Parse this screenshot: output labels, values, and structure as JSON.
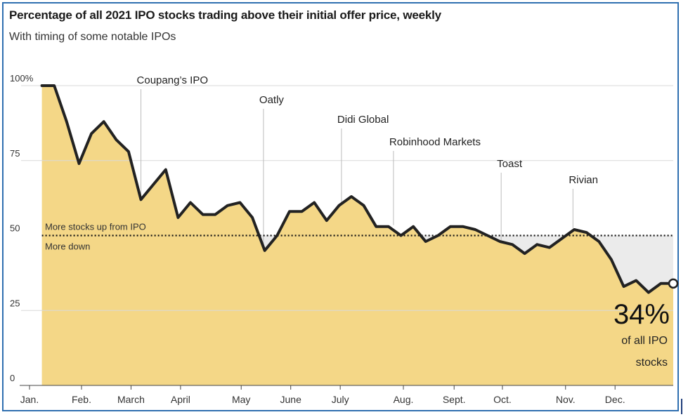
{
  "chart_data": {
    "type": "area",
    "title": "Percentage of all 2021 IPO stocks trading above their initial offer price, weekly",
    "subtitle": "With timing of some notable IPOs",
    "y_ticks": [
      {
        "value": 100,
        "label": "100%"
      },
      {
        "value": 75,
        "label": "75"
      },
      {
        "value": 50,
        "label": "50"
      },
      {
        "value": 25,
        "label": "25"
      },
      {
        "value": 0,
        "label": "0"
      }
    ],
    "ylim": [
      0,
      100
    ],
    "xlim": [
      0,
      52
    ],
    "x_ticks": [
      {
        "week": 0,
        "label": "Jan."
      },
      {
        "week": 4.2,
        "label": "Feb."
      },
      {
        "week": 8.2,
        "label": "March"
      },
      {
        "week": 12.2,
        "label": "April"
      },
      {
        "week": 17.1,
        "label": "May"
      },
      {
        "week": 21.1,
        "label": "June"
      },
      {
        "week": 25.1,
        "label": "July"
      },
      {
        "week": 30.2,
        "label": "Aug."
      },
      {
        "week": 34.3,
        "label": "Sept."
      },
      {
        "week": 38.2,
        "label": "Oct."
      },
      {
        "week": 43.3,
        "label": "Nov."
      },
      {
        "week": 47.3,
        "label": "Dec."
      }
    ],
    "reference_line": {
      "value": 50,
      "label_above": "More stocks up from IPO",
      "label_below": "More down"
    },
    "series": [
      {
        "x": [
          1,
          2,
          3,
          4,
          5,
          6,
          7,
          8,
          9,
          10,
          11,
          12,
          13,
          14,
          15,
          16,
          17,
          18,
          19,
          20,
          21,
          22,
          23,
          24,
          25,
          26,
          27,
          28,
          29,
          30,
          31,
          32,
          33,
          34,
          35,
          36,
          37,
          38,
          39,
          40,
          41,
          42,
          43,
          44,
          45,
          46,
          47,
          48,
          49,
          50,
          51,
          52
        ],
        "values": [
          100,
          100,
          88,
          74,
          84,
          88,
          82,
          78,
          62,
          67,
          72,
          56,
          61,
          57,
          57,
          60,
          61,
          56,
          45,
          50,
          58,
          58,
          61,
          55,
          60,
          63,
          60,
          53,
          53,
          50,
          53,
          48,
          50,
          53,
          53,
          52,
          50,
          48,
          47,
          44,
          47,
          46,
          49,
          52,
          51,
          48,
          42,
          33,
          35,
          31,
          34,
          34
        ]
      }
    ],
    "annotations": [
      {
        "label": "Coupang’s IPO",
        "week": 9.0
      },
      {
        "label": "Oatly",
        "week": 18.9
      },
      {
        "label": "Didi Global",
        "week": 25.2
      },
      {
        "label": "Robinhood Markets",
        "week": 29.4
      },
      {
        "label": "Toast",
        "week": 38.1
      },
      {
        "label": "Rivian",
        "week": 43.9
      }
    ],
    "end_label": {
      "value": "34%",
      "text_line1": "of all IPO",
      "text_line2": "stocks"
    },
    "colors": {
      "fill": "#f4d787",
      "line": "#222222",
      "below_bg": "#ebebeb",
      "axis": "#444444",
      "grid": "#d9d9d9"
    }
  }
}
